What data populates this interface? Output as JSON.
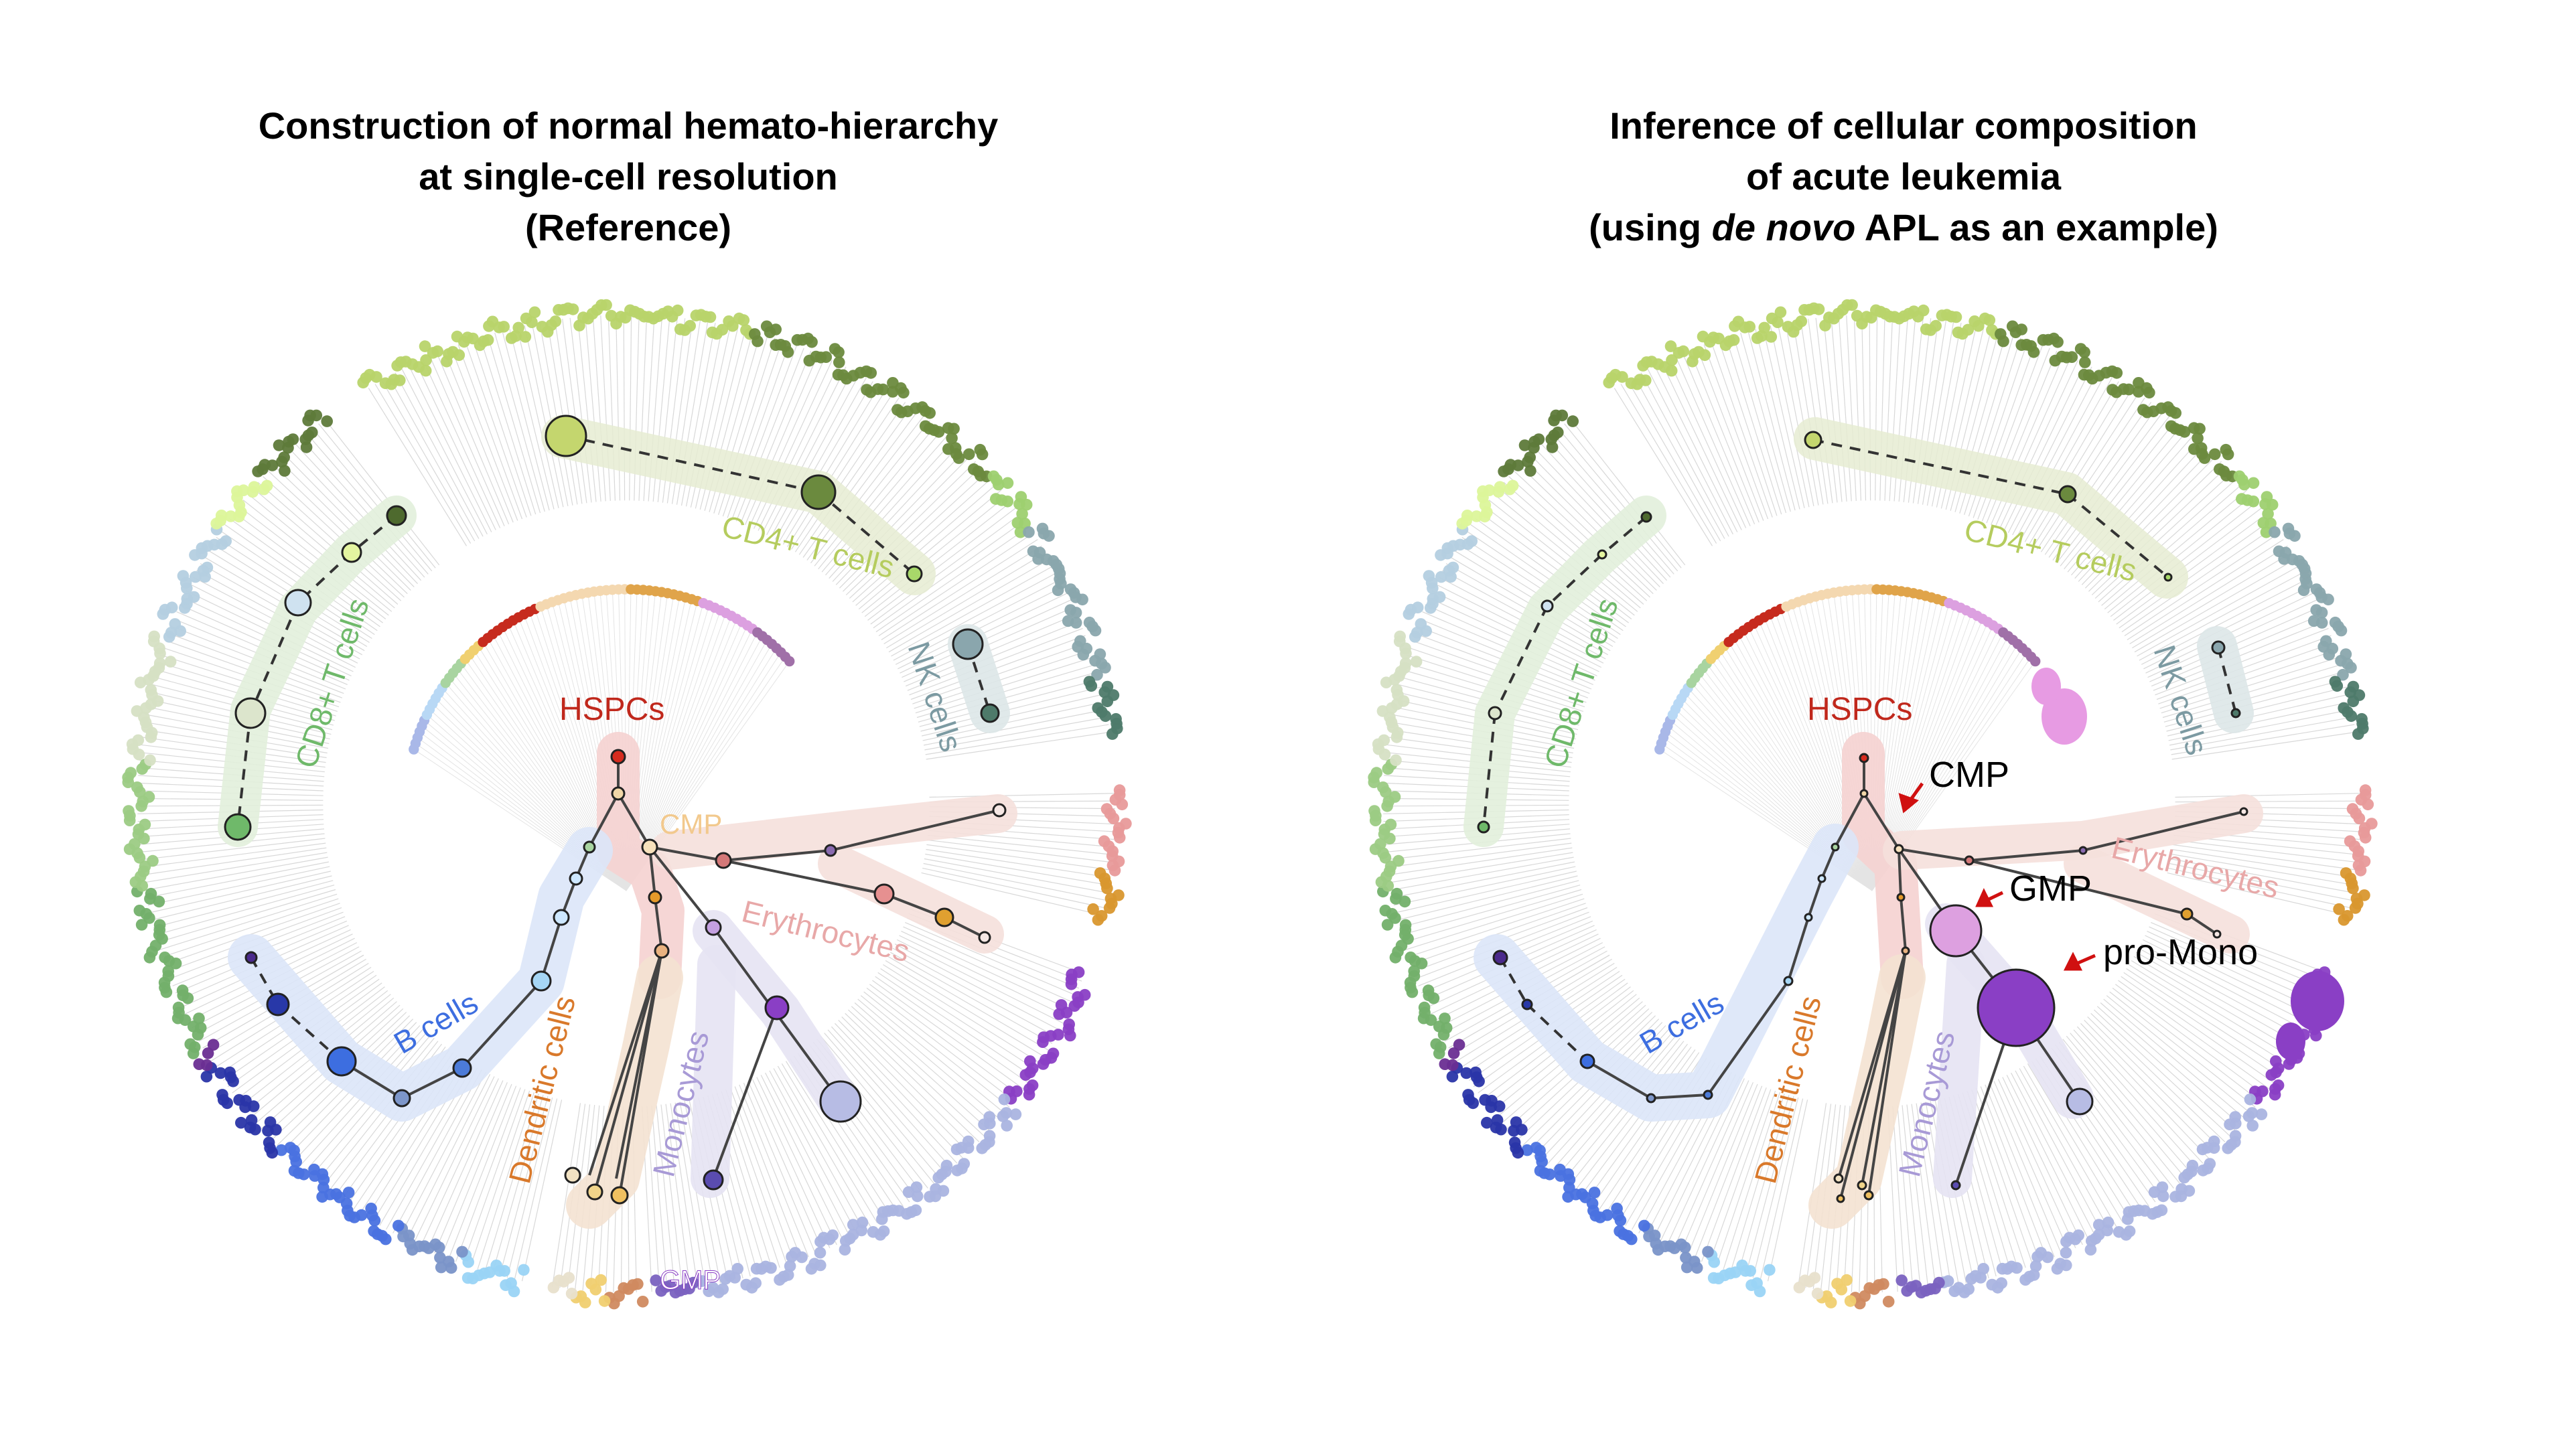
{
  "titles": {
    "left": {
      "line1": "Construction of normal hemato-hierarchy",
      "line2": "at single-cell resolution",
      "line3": "(Reference)"
    },
    "right": {
      "line1": "Inference of cellular composition",
      "line2": "of acute leukemia",
      "line3_prefix": "(using ",
      "line3_italic": "de novo",
      "line3_suffix": " APL as an example)"
    }
  },
  "left_labels": {
    "cd4": "CD4+ T cells",
    "cd8": "CD8+ T cells",
    "nk": "NK cells",
    "hspc": "HSPCs",
    "cmp": "CMP",
    "ery": "Erythrocytes",
    "b": "B cells",
    "dc": "Dendritic cells",
    "mono": "Monocytes",
    "gmp": "GMP"
  },
  "right_labels": {
    "cd4": "CD4+ T cells",
    "cd8": "CD8+ T cells",
    "nk": "NK cells",
    "hspc": "HSPCs",
    "ery": "Erythrocytes",
    "b": "B cells",
    "dc": "Dendritic cells",
    "mono": "Monocytes"
  },
  "annotations": {
    "cmp": "CMP",
    "gmp": "GMP",
    "promono": "pro-Mono"
  },
  "colors": {
    "cd4": "#b5cc5e",
    "cd4_dark": "#6b8a3e",
    "cd8": "#6fb96a",
    "nk": "#6f949c",
    "hspc": "#c0392b",
    "cmp": "#f2c98d",
    "ery": "#e8a0a0",
    "b": "#3d6ee0",
    "dc": "#d9792b",
    "mono": "#a89ad6",
    "promono": "#8a3fc5",
    "arrow": "#d01010"
  }
}
